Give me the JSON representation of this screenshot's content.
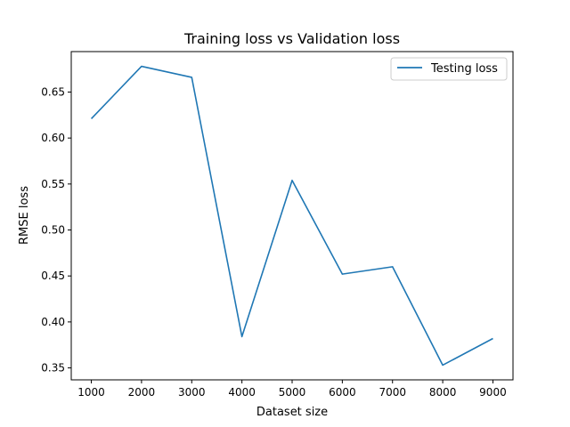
{
  "chart_data": {
    "type": "line",
    "title": "Training loss vs Validation loss",
    "xlabel": "Dataset size",
    "ylabel": "RMSE loss",
    "x": [
      1000,
      2000,
      3000,
      4000,
      5000,
      6000,
      7000,
      8000,
      9000
    ],
    "series": [
      {
        "name": "Testing loss",
        "color": "#1f77b4",
        "values": [
          0.621,
          0.678,
          0.666,
          0.384,
          0.554,
          0.452,
          0.46,
          0.353,
          0.382
        ]
      }
    ],
    "xlim": [
      600,
      9400
    ],
    "ylim": [
      0.337,
      0.694
    ],
    "xticks": [
      1000,
      2000,
      3000,
      4000,
      5000,
      6000,
      7000,
      8000,
      9000
    ],
    "yticks": [
      0.35,
      0.4,
      0.45,
      0.5,
      0.55,
      0.6,
      0.65
    ],
    "ytick_labels": [
      "0.35",
      "0.40",
      "0.45",
      "0.50",
      "0.55",
      "0.60",
      "0.65"
    ],
    "grid": false,
    "legend_position": "top-right"
  }
}
